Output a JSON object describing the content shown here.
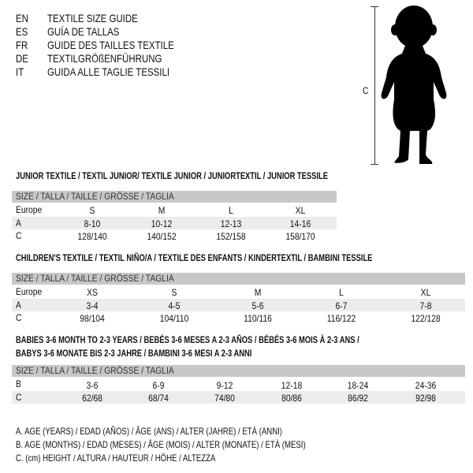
{
  "languages": [
    {
      "code": "EN",
      "title": "TEXTILE SIZE GUIDE"
    },
    {
      "code": "ES",
      "title": "GUÍA DE TALLAS"
    },
    {
      "code": "FR",
      "title": "GUIDE DES TAILLES TEXTILE"
    },
    {
      "code": "DE",
      "title": "TEXTILGRÖßENFÜHRUNG"
    },
    {
      "code": "IT",
      "title": "GUIDA ALLE TAGLIE TESSILI"
    }
  ],
  "figure": {
    "measure_label": "C",
    "icon": "child-silhouette"
  },
  "size_header": "SIZE / TALLA / TAILLE / GRÖSSE / TAGLIA",
  "junior": {
    "title": "JUNIOR TEXTILE / TEXTIL JUNIOR/ TEXTILE JUNIOR / JUNIORTEXTIL / JUNIOR TESSILE",
    "rows": [
      {
        "label": "Europe",
        "values": [
          "S",
          "M",
          "L",
          "XL"
        ]
      },
      {
        "label": "A",
        "values": [
          "8-10",
          "10-12",
          "12-13",
          "14-16"
        ]
      },
      {
        "label": "C",
        "values": [
          "128/140",
          "140/152",
          "152/158",
          "158/170"
        ]
      }
    ]
  },
  "children": {
    "title": "CHILDREN'S TEXTILE / TEXTIL NIÑO/A / TEXTILE DES ENFANTS / KINDERTEXTIL / BAMBINI TESSILE",
    "rows": [
      {
        "label": "Europe",
        "values": [
          "XS",
          "S",
          "M",
          "L",
          "XL"
        ]
      },
      {
        "label": "A",
        "values": [
          "3-4",
          "4-5",
          "5-6",
          "6-7",
          "7-8"
        ]
      },
      {
        "label": "C",
        "values": [
          "98/104",
          "104/110",
          "110/116",
          "116/122",
          "122/128"
        ]
      }
    ]
  },
  "babies": {
    "title_line1": "BABIES 3-6 MONTH TO 2-3 YEARS / BEBÉS 3-6 MESES A 2-3 AÑOS / BÉBÉS 3-6 MOIS À 2-3 ANS /",
    "title_line2": "BABYS 3-6 MONATE BIS 2-3 JAHRE / BAMBINI 3-6 MESI A 2-3 ANNI",
    "rows": [
      {
        "label": "B",
        "values": [
          "3-6",
          "6-9",
          "9-12",
          "12-18",
          "18-24",
          "24-36"
        ]
      },
      {
        "label": "C",
        "values": [
          "62/68",
          "68/74",
          "74/80",
          "80/86",
          "86/92",
          "92/98"
        ]
      }
    ]
  },
  "legend": [
    "A. AGE (YEARS) / EDAD (AÑOS) / ÂGE (ANS) / ALTER (JAHRE) / ETÀ (ANNI)",
    "B. AGE (MONTHS) / EDAD (MESES) / ÂGE (MOIS) / ALTER (MONATE) / ETÀ (MESI)",
    "C. (cm) HEIGHT / ALTURA / HAUTEUR / HÖHE / ALTEZZA"
  ]
}
